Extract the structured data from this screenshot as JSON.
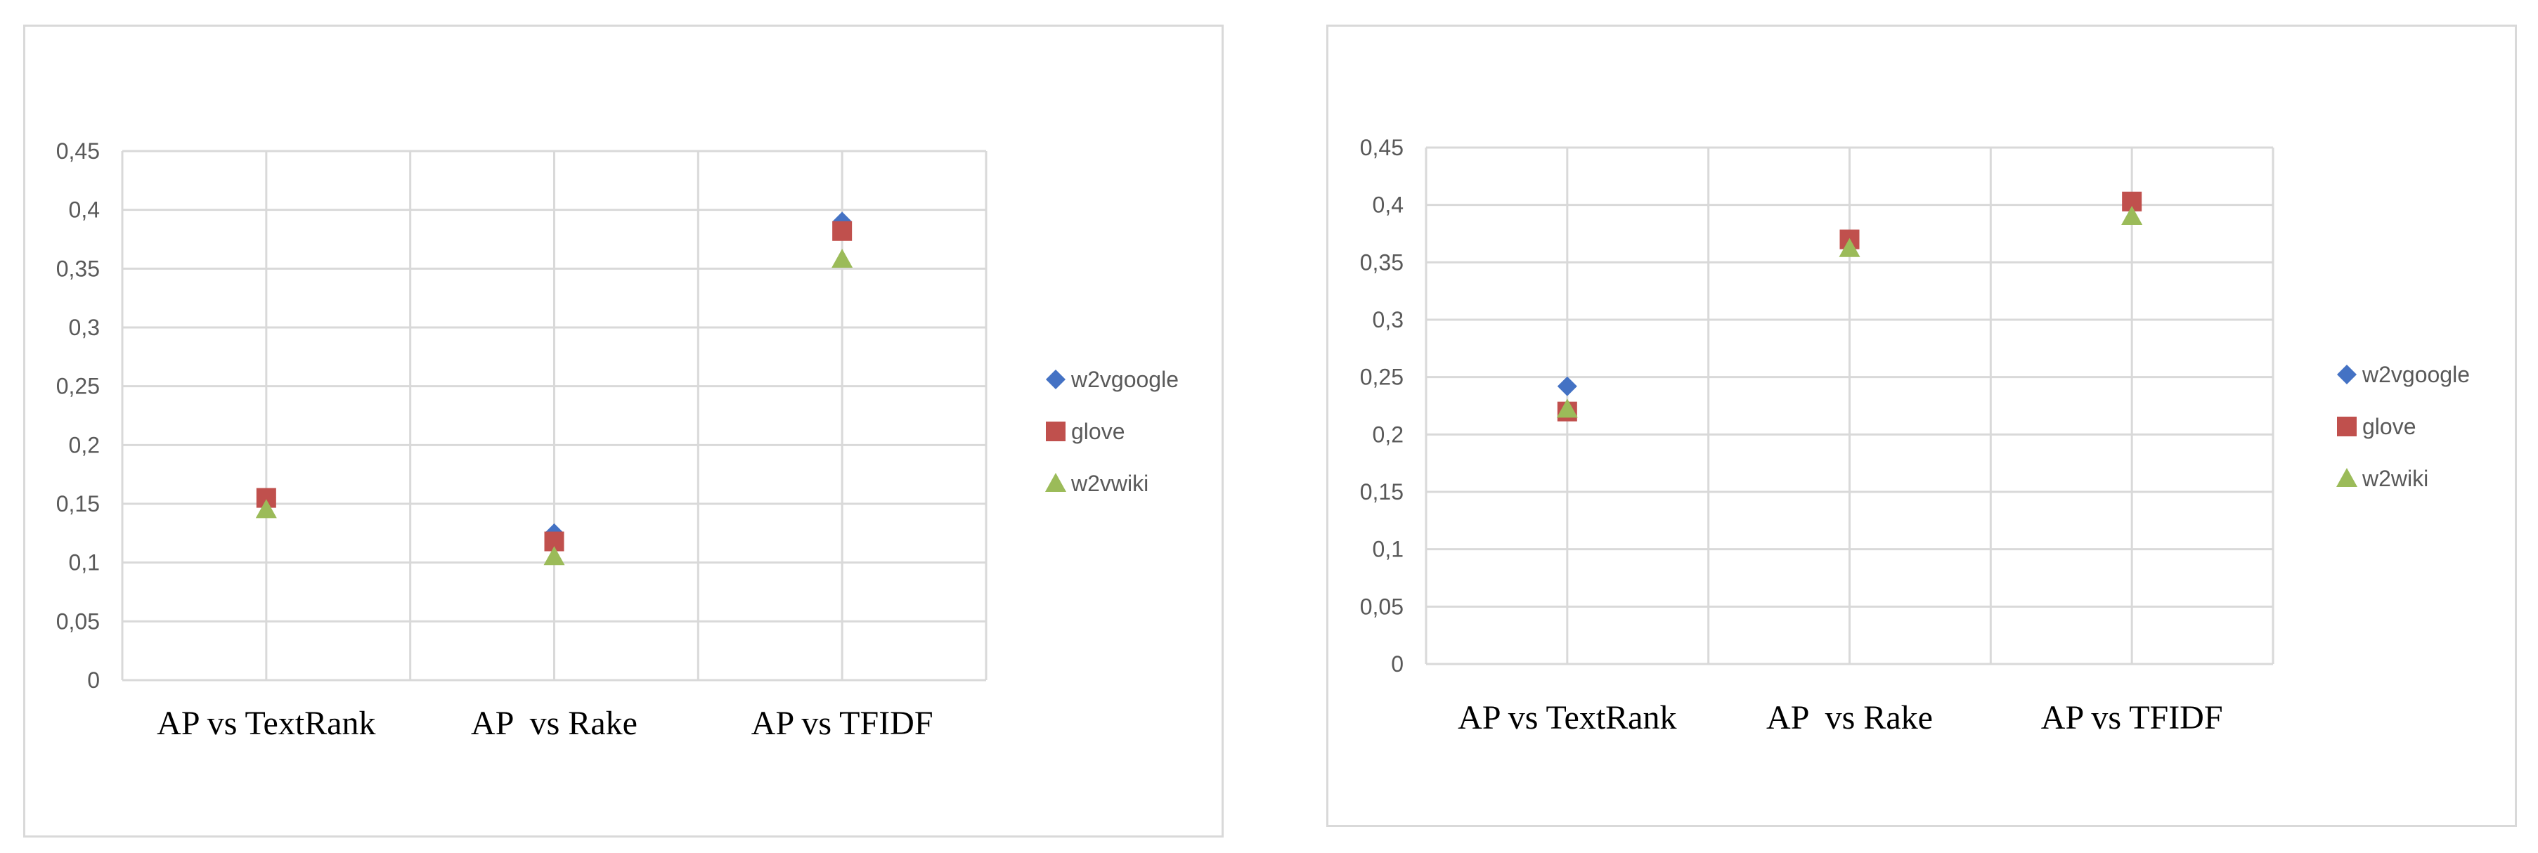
{
  "chart_data": [
    {
      "type": "scatter",
      "categories": [
        "AP vs TextRank",
        "AP  vs Rake",
        "AP vs TFIDF"
      ],
      "yticks": [
        "0",
        "0,05",
        "0,1",
        "0,15",
        "0,2",
        "0,25",
        "0,3",
        "0,35",
        "0,4",
        "0,45"
      ],
      "ylim": [
        0,
        0.45
      ],
      "grid": true,
      "legend_position": "right",
      "series": [
        {
          "name": "w2vgoogle",
          "marker": "diamond",
          "color": "#4472c4",
          "values": [
            0.155,
            0.125,
            0.39
          ]
        },
        {
          "name": "glove",
          "marker": "square",
          "color": "#c0504d",
          "values": [
            0.155,
            0.118,
            0.382
          ]
        },
        {
          "name": "w2vwiki",
          "marker": "triangle",
          "color": "#9bbb59",
          "values": [
            0.145,
            0.105,
            0.358
          ]
        }
      ]
    },
    {
      "type": "scatter",
      "categories": [
        "AP vs TextRank",
        "AP  vs Rake",
        "AP vs TFIDF"
      ],
      "yticks": [
        "0",
        "0,05",
        "0,1",
        "0,15",
        "0,2",
        "0,25",
        "0,3",
        "0,35",
        "0,4",
        "0,45"
      ],
      "ylim": [
        0,
        0.45
      ],
      "grid": true,
      "legend_position": "right",
      "series": [
        {
          "name": "w2vgoogle",
          "marker": "diamond",
          "color": "#4472c4",
          "values": [
            0.242,
            0.368,
            0.403
          ]
        },
        {
          "name": "glove",
          "marker": "square",
          "color": "#c0504d",
          "values": [
            0.22,
            0.37,
            0.403
          ]
        },
        {
          "name": "w2wiki",
          "marker": "triangle",
          "color": "#9bbb59",
          "values": [
            0.222,
            0.362,
            0.39
          ]
        }
      ]
    }
  ]
}
